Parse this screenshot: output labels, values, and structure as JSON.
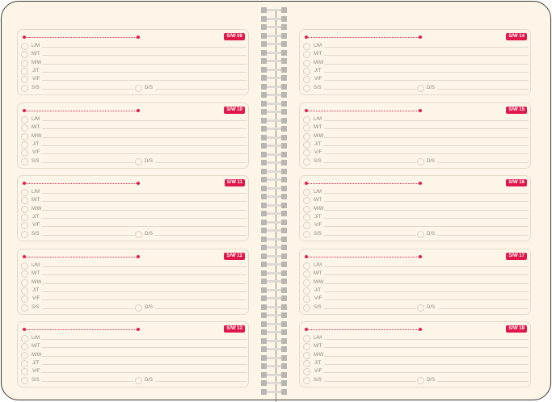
{
  "days": [
    "L/M",
    "M/T",
    "M/W",
    "J/T",
    "V/F",
    "S/S"
  ],
  "sunday": "D/S",
  "colors": {
    "accent": "#e0174a",
    "background": "#fdf6e8"
  },
  "left_column": [
    {
      "week": "S/W 09"
    },
    {
      "week": "S/W 10"
    },
    {
      "week": "S/W 11"
    },
    {
      "week": "S/W 12"
    },
    {
      "week": "S/W 13"
    }
  ],
  "right_column": [
    {
      "week": "S/W 14"
    },
    {
      "week": "S/W 15"
    },
    {
      "week": "S/W 16"
    },
    {
      "week": "S/W 17"
    },
    {
      "week": "S/W 18"
    }
  ]
}
